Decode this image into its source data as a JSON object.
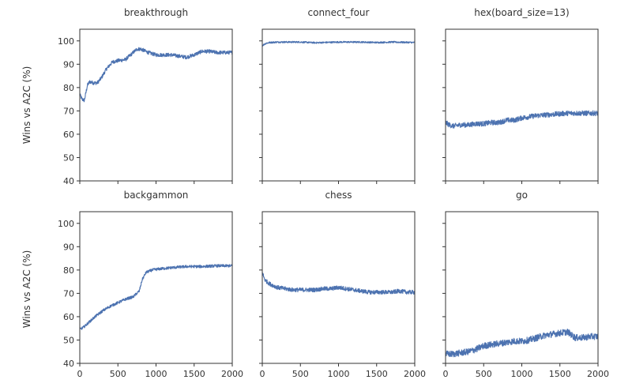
{
  "chart_data": {
    "type": "line",
    "layout": "2x3 grid, shared x and y axes",
    "ylabel": "Wins vs A2C (%)",
    "xlim": [
      0,
      2000
    ],
    "ylim": [
      40,
      105
    ],
    "xticks": [
      0,
      500,
      1000,
      1500,
      2000
    ],
    "yticks": [
      40,
      50,
      60,
      70,
      80,
      90,
      100
    ],
    "grid": false,
    "legend": "none",
    "series_color": "#4c72b0",
    "panels": [
      {
        "title": "breakthrough",
        "x": [
          0,
          30,
          60,
          100,
          130,
          180,
          230,
          280,
          350,
          430,
          500,
          600,
          700,
          750,
          800,
          900,
          1000,
          1100,
          1200,
          1300,
          1400,
          1500,
          1600,
          1700,
          1800,
          1900,
          2000
        ],
        "values": [
          77,
          75,
          74.5,
          81,
          82.5,
          82,
          82,
          84,
          88,
          91,
          91.5,
          92,
          95,
          96.5,
          96.5,
          95,
          94,
          94,
          94,
          93.5,
          93,
          94,
          95.5,
          95.5,
          95,
          95,
          95
        ],
        "noise": 0.8
      },
      {
        "title": "connect_four",
        "x": [
          0,
          50,
          100,
          200,
          300,
          500,
          700,
          1000,
          1300,
          1500,
          1700,
          2000
        ],
        "values": [
          98,
          99,
          99.3,
          99.5,
          99.5,
          99.5,
          99.2,
          99.5,
          99.5,
          99.3,
          99.5,
          99.3
        ],
        "noise": 0.35
      },
      {
        "title": "hex(board_size=13)",
        "x": [
          0,
          50,
          100,
          200,
          300,
          400,
          500,
          600,
          700,
          800,
          900,
          1000,
          1100,
          1200,
          1400,
          1600,
          1800,
          2000
        ],
        "values": [
          65,
          64,
          63.5,
          64,
          64,
          64.5,
          64.5,
          65,
          65,
          66,
          66,
          67,
          67.5,
          68,
          68.5,
          69,
          69,
          69
        ],
        "noise": 1.1
      },
      {
        "title": "backgammon",
        "x": [
          0,
          50,
          100,
          200,
          300,
          400,
          500,
          600,
          700,
          780,
          820,
          870,
          950,
          1050,
          1200,
          1400,
          1600,
          1800,
          2000
        ],
        "values": [
          54.5,
          55.5,
          57,
          60,
          62.5,
          64.5,
          66,
          67.5,
          68.5,
          71,
          76,
          79,
          80,
          80.5,
          81,
          81.5,
          81.5,
          81.8,
          81.8
        ],
        "noise": 0.6
      },
      {
        "title": "chess",
        "x": [
          0,
          30,
          60,
          100,
          200,
          300,
          400,
          500,
          600,
          700,
          800,
          900,
          1000,
          1100,
          1200,
          1300,
          1400,
          1500,
          1600,
          1700,
          1800,
          1900,
          2000
        ],
        "values": [
          79,
          76,
          75,
          74,
          72.5,
          72,
          71.5,
          71.5,
          71.5,
          71.5,
          72,
          72,
          72.5,
          72,
          71.5,
          71,
          70.5,
          70.5,
          70.5,
          70.5,
          71,
          70.5,
          70.5
        ],
        "noise": 0.9
      },
      {
        "title": "go",
        "x": [
          0,
          100,
          200,
          300,
          400,
          500,
          600,
          700,
          800,
          900,
          1000,
          1100,
          1200,
          1300,
          1400,
          1500,
          1600,
          1700,
          1800,
          1900,
          2000
        ],
        "values": [
          44,
          44,
          44.5,
          45,
          46,
          47.5,
          48,
          48.5,
          49,
          49.5,
          49.5,
          50,
          51,
          52,
          52.5,
          53,
          53.5,
          51,
          51,
          51.5,
          51.5
        ],
        "noise": 1.4
      }
    ]
  }
}
